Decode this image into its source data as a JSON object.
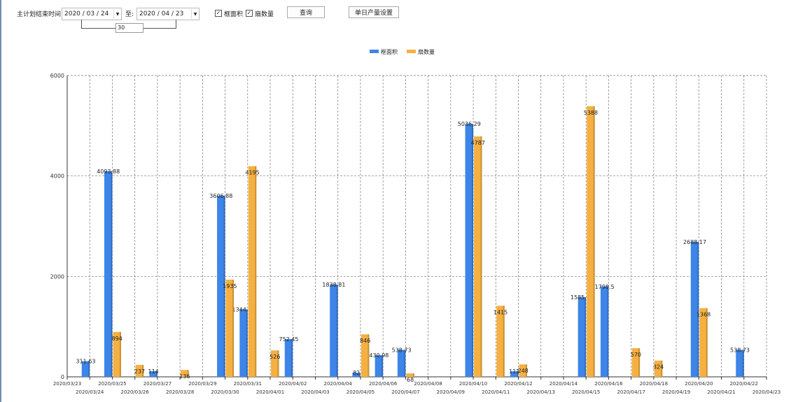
{
  "toolbar": {
    "end_time_label": "主计划结束时间:",
    "start_date": "2020 / 03 / 24",
    "to_label": "至:",
    "end_date": "2020 / 04 / 23",
    "days": "30",
    "check_area": {
      "label": "框面积",
      "checked": true
    },
    "check_count": {
      "label": "扇数量",
      "checked": true
    },
    "query_button": "查询",
    "daily_output_button": "单日产量设置"
  },
  "chart_data": {
    "type": "bar",
    "categories": [
      "2020/03/23",
      "2020/03/24",
      "2020/03/25",
      "2020/03/26",
      "2020/03/27",
      "2020/03/28",
      "2020/03/29",
      "2020/03/30",
      "2020/03/31",
      "2020/04/01",
      "2020/04/02",
      "2020/04/03",
      "2020/04/04",
      "2020/04/05",
      "2020/04/06",
      "2020/04/07",
      "2020/04/08",
      "2020/04/09",
      "2020/04/10",
      "2020/04/11",
      "2020/04/12",
      "2020/04/13",
      "2020/04/14",
      "2020/04/15",
      "2020/04/16",
      "2020/04/17",
      "2020/04/18",
      "2020/04/19",
      "2020/04/20",
      "2020/04/21",
      "2020/04/22",
      "2020/04/23"
    ],
    "series": [
      {
        "name": "框面积",
        "color": "#3d85e8",
        "values": [
          null,
          311.63,
          4093.88,
          null,
          114,
          null,
          null,
          3606.88,
          1344.95,
          null,
          752.45,
          null,
          1838.81,
          82,
          430.98,
          538.73,
          null,
          null,
          5036.29,
          null,
          111,
          null,
          null,
          1585.96,
          1798.5,
          null,
          null,
          null,
          2688.17,
          null,
          538.73,
          null
        ]
      },
      {
        "name": "扇数量",
        "color": "#f5b041",
        "values": [
          null,
          null,
          894,
          237,
          null,
          136,
          null,
          1935,
          4195,
          526,
          null,
          null,
          null,
          846,
          null,
          68,
          null,
          null,
          4787,
          1415,
          248,
          null,
          null,
          5388,
          null,
          570,
          324,
          null,
          1368,
          null,
          null,
          null
        ]
      }
    ],
    "yticks": [
      0,
      2000,
      4000,
      6000
    ],
    "ylim": [
      0,
      6000
    ],
    "grid": true,
    "legend": "top-center"
  }
}
